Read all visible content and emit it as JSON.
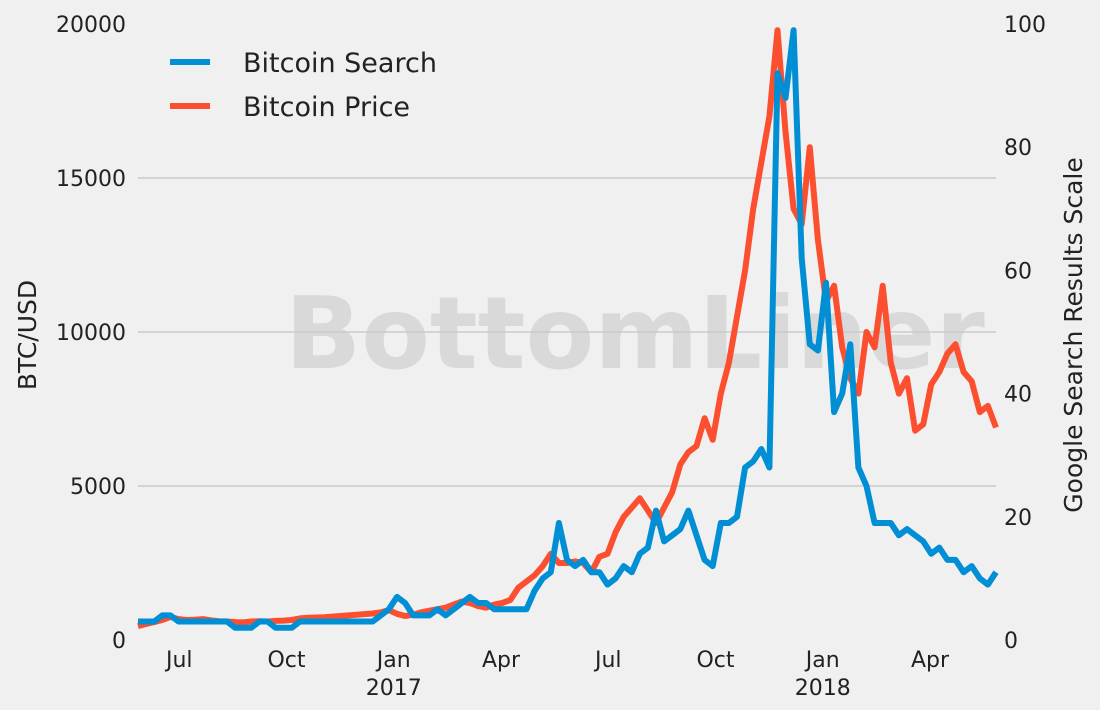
{
  "chart_data": {
    "type": "line",
    "title": "",
    "watermark": "BottomLiner",
    "xlabel": "",
    "ylabel": "BTC/USD",
    "ylabel_right": "Google Search Results Scale",
    "ylim": [
      0,
      20000
    ],
    "ylim_right": [
      0,
      100
    ],
    "yticks": [
      "0",
      "5000",
      "10000",
      "15000",
      "20000"
    ],
    "yticks_right": [
      "0",
      "20",
      "40",
      "60",
      "80",
      "100"
    ],
    "xticks": [
      {
        "label": "Jul",
        "sub": "",
        "t": 5
      },
      {
        "label": "Oct",
        "sub": "",
        "t": 18
      },
      {
        "label": "Jan",
        "sub": "2017",
        "t": 31
      },
      {
        "label": "Apr",
        "sub": "",
        "t": 44
      },
      {
        "label": "Jul",
        "sub": "",
        "t": 57
      },
      {
        "label": "Oct",
        "sub": "",
        "t": 70
      },
      {
        "label": "Jan",
        "sub": "2018",
        "t": 83
      },
      {
        "label": "Apr",
        "sub": "",
        "t": 96
      }
    ],
    "grid": true,
    "legend": "top-left",
    "x_range_weeks": [
      0,
      104
    ],
    "series": [
      {
        "name": "Bitcoin Search",
        "axis": "right",
        "color": "#008fd5",
        "values": [
          3,
          3,
          3,
          4,
          4,
          3,
          3,
          3,
          3,
          3,
          3,
          3,
          2,
          2,
          2,
          3,
          3,
          2,
          2,
          2,
          3,
          3,
          3,
          3,
          3,
          3,
          3,
          3,
          3,
          3,
          4,
          5,
          7,
          6,
          4,
          4,
          4,
          5,
          4,
          5,
          6,
          7,
          6,
          6,
          5,
          5,
          5,
          5,
          5,
          8,
          10,
          11,
          19,
          13,
          12,
          13,
          11,
          11,
          9,
          10,
          12,
          11,
          14,
          15,
          21,
          16,
          17,
          18,
          21,
          17,
          13,
          12,
          19,
          19,
          20,
          28,
          29,
          31,
          28,
          92,
          88,
          99,
          62,
          48,
          47,
          58,
          37,
          40,
          48,
          28,
          25,
          19,
          19,
          19,
          17,
          18,
          17,
          16,
          14,
          15,
          13,
          13,
          11,
          12,
          10,
          9,
          11
        ],
        "x_scale_note": "weekly samples"
      },
      {
        "name": "Bitcoin Price",
        "axis": "left",
        "color": "#fc4f30",
        "values": [
          450,
          520,
          580,
          650,
          750,
          680,
          650,
          660,
          680,
          640,
          610,
          600,
          580,
          570,
          600,
          610,
          600,
          620,
          630,
          650,
          700,
          720,
          730,
          740,
          760,
          780,
          800,
          820,
          840,
          860,
          900,
          970,
          850,
          780,
          820,
          900,
          950,
          1000,
          1050,
          1150,
          1250,
          1200,
          1100,
          1050,
          1150,
          1200,
          1300,
          1700,
          1900,
          2100,
          2400,
          2800,
          2500,
          2500,
          2550,
          2500,
          2200,
          2700,
          2800,
          3500,
          4000,
          4300,
          4600,
          4200,
          3800,
          4300,
          4800,
          5700,
          6100,
          6300,
          7200,
          6500,
          8000,
          9000,
          10500,
          12000,
          14000,
          15500,
          17000,
          19800,
          16500,
          14000,
          13500,
          16000,
          13000,
          11000,
          11500,
          9500,
          8500,
          8000,
          10000,
          9500,
          11500,
          9000,
          8000,
          8500,
          6800,
          7000,
          8300,
          8700,
          9300,
          9600,
          8700,
          8400,
          7400,
          7600,
          6900
        ]
      }
    ]
  }
}
